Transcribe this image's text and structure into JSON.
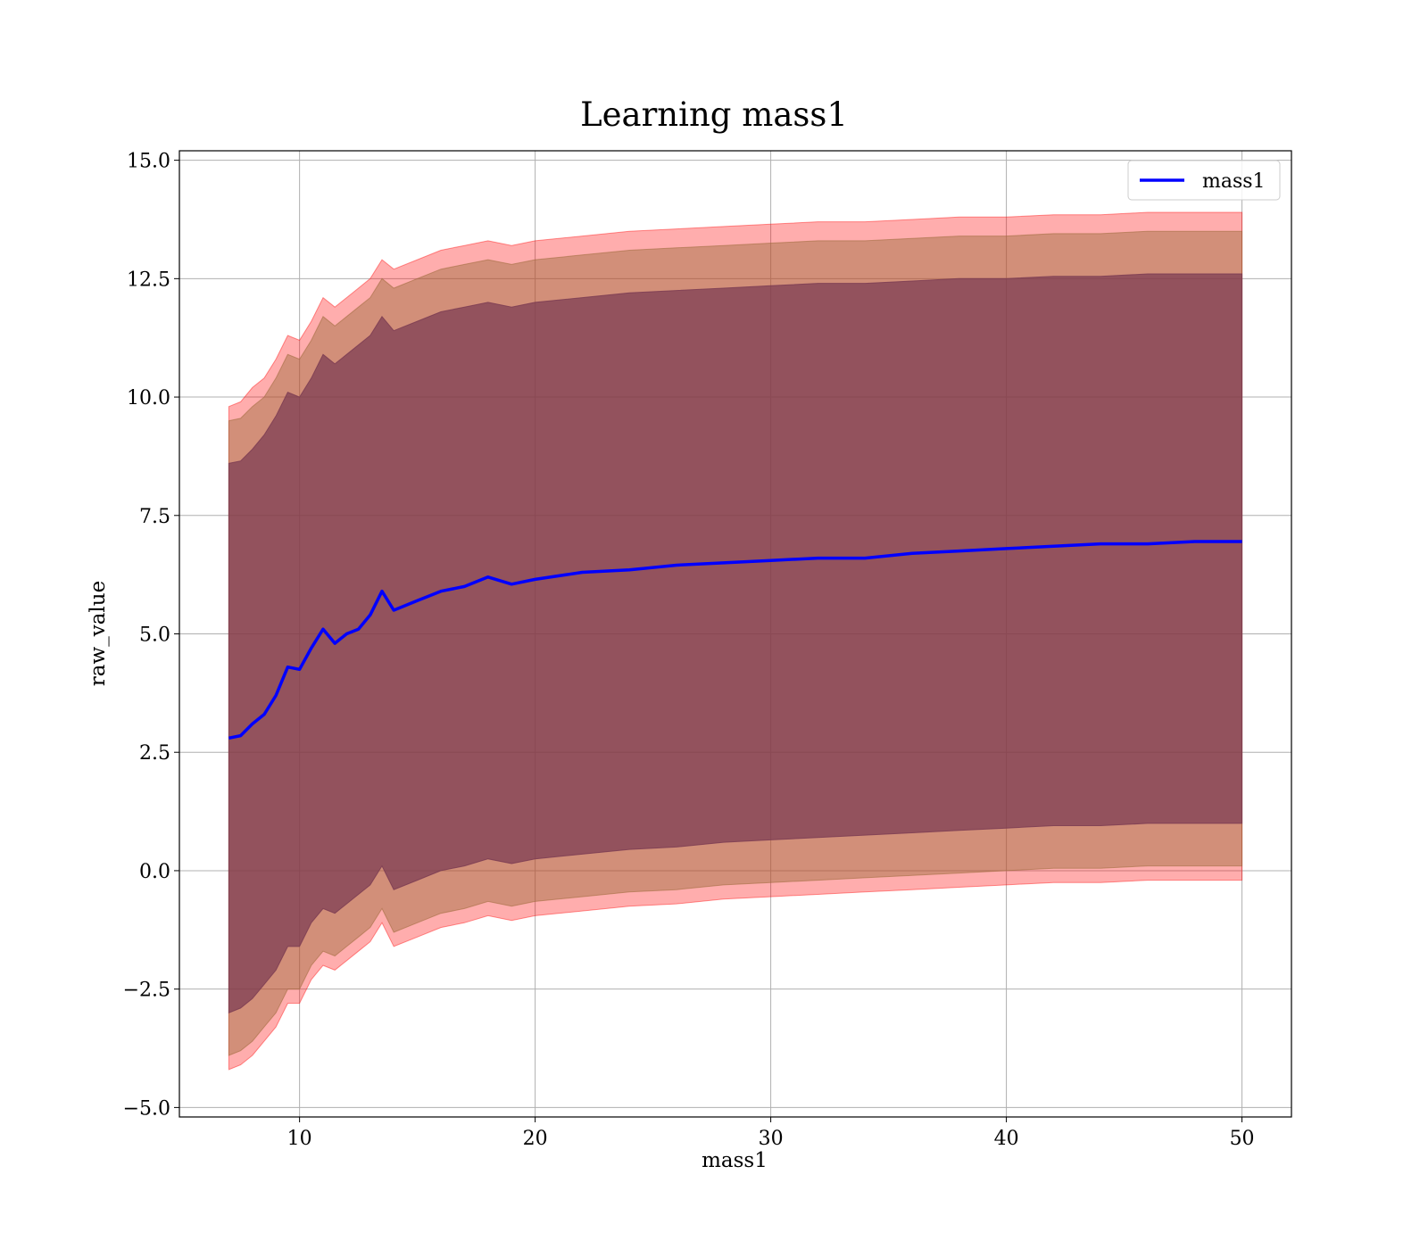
{
  "chart_data": {
    "type": "area",
    "title": "Learning mass1",
    "xlabel": "mass1",
    "ylabel": "raw_value",
    "xlim": [
      4.9,
      52.1
    ],
    "ylim": [
      -5.2,
      15.2
    ],
    "xticks": [
      10,
      20,
      30,
      40,
      50
    ],
    "xtick_labels": [
      "10",
      "20",
      "30",
      "40",
      "50"
    ],
    "yticks": [
      -5.0,
      -2.5,
      0.0,
      2.5,
      5.0,
      7.5,
      10.0,
      12.5,
      15.0
    ],
    "ytick_labels": [
      "−5.0",
      "−2.5",
      "0.0",
      "2.5",
      "5.0",
      "7.5",
      "10.0",
      "12.5",
      "15.0"
    ],
    "grid": true,
    "legend_placement": "top-right",
    "x": [
      7.0,
      7.5,
      8.0,
      8.5,
      9.0,
      9.5,
      10.0,
      10.5,
      11.0,
      11.5,
      12.0,
      12.5,
      13.0,
      13.5,
      14.0,
      15.0,
      16.0,
      17.0,
      18.0,
      19.0,
      20.0,
      22.0,
      24.0,
      26.0,
      28.0,
      30.0,
      32.0,
      34.0,
      36.0,
      38.0,
      40.0,
      42.0,
      44.0,
      46.0,
      48.0,
      50.0
    ],
    "series": [
      {
        "name": "mass1",
        "color": "#0000ff",
        "values": [
          2.8,
          2.85,
          3.1,
          3.3,
          3.7,
          4.3,
          4.25,
          4.7,
          5.1,
          4.8,
          5.0,
          5.1,
          5.4,
          5.9,
          5.5,
          5.7,
          5.9,
          6.0,
          6.2,
          6.05,
          6.15,
          6.3,
          6.35,
          6.45,
          6.5,
          6.55,
          6.6,
          6.6,
          6.7,
          6.75,
          6.8,
          6.85,
          6.9,
          6.9,
          6.95,
          6.95
        ]
      }
    ],
    "bands": [
      {
        "color": "#ff0000",
        "opacity": 0.32,
        "upper": [
          9.8,
          9.9,
          10.2,
          10.4,
          10.8,
          11.3,
          11.2,
          11.6,
          12.1,
          11.9,
          12.1,
          12.3,
          12.5,
          12.9,
          12.7,
          12.9,
          13.1,
          13.2,
          13.3,
          13.2,
          13.3,
          13.4,
          13.5,
          13.55,
          13.6,
          13.65,
          13.7,
          13.7,
          13.75,
          13.8,
          13.8,
          13.85,
          13.85,
          13.9,
          13.9,
          13.9
        ],
        "lower": [
          -4.2,
          -4.1,
          -3.9,
          -3.6,
          -3.3,
          -2.8,
          -2.8,
          -2.3,
          -2.0,
          -2.1,
          -1.9,
          -1.7,
          -1.5,
          -1.1,
          -1.6,
          -1.4,
          -1.2,
          -1.1,
          -0.95,
          -1.05,
          -0.95,
          -0.85,
          -0.75,
          -0.7,
          -0.6,
          -0.55,
          -0.5,
          -0.45,
          -0.4,
          -0.35,
          -0.3,
          -0.25,
          -0.25,
          -0.2,
          -0.2,
          -0.2
        ]
      },
      {
        "color": "#9c6a3a",
        "opacity": 0.45,
        "upper": [
          9.5,
          9.55,
          9.8,
          10.0,
          10.4,
          10.9,
          10.8,
          11.2,
          11.7,
          11.5,
          11.7,
          11.9,
          12.1,
          12.5,
          12.3,
          12.5,
          12.7,
          12.8,
          12.9,
          12.8,
          12.9,
          13.0,
          13.1,
          13.15,
          13.2,
          13.25,
          13.3,
          13.3,
          13.35,
          13.4,
          13.4,
          13.45,
          13.45,
          13.5,
          13.5,
          13.5
        ],
        "lower": [
          -3.9,
          -3.8,
          -3.6,
          -3.3,
          -3.0,
          -2.5,
          -2.5,
          -2.0,
          -1.7,
          -1.8,
          -1.6,
          -1.4,
          -1.2,
          -0.8,
          -1.3,
          -1.1,
          -0.9,
          -0.8,
          -0.65,
          -0.75,
          -0.65,
          -0.55,
          -0.45,
          -0.4,
          -0.3,
          -0.25,
          -0.2,
          -0.15,
          -0.1,
          -0.05,
          0.0,
          0.05,
          0.05,
          0.1,
          0.1,
          0.1
        ]
      },
      {
        "color": "#7a3a52",
        "opacity": 0.72,
        "upper": [
          8.6,
          8.65,
          8.9,
          9.2,
          9.6,
          10.1,
          10.0,
          10.4,
          10.9,
          10.7,
          10.9,
          11.1,
          11.3,
          11.7,
          11.4,
          11.6,
          11.8,
          11.9,
          12.0,
          11.9,
          12.0,
          12.1,
          12.2,
          12.25,
          12.3,
          12.35,
          12.4,
          12.4,
          12.45,
          12.5,
          12.5,
          12.55,
          12.55,
          12.6,
          12.6,
          12.6
        ],
        "lower": [
          -3.0,
          -2.9,
          -2.7,
          -2.4,
          -2.1,
          -1.6,
          -1.6,
          -1.1,
          -0.8,
          -0.9,
          -0.7,
          -0.5,
          -0.3,
          0.1,
          -0.4,
          -0.2,
          0.0,
          0.1,
          0.25,
          0.15,
          0.25,
          0.35,
          0.45,
          0.5,
          0.6,
          0.65,
          0.7,
          0.75,
          0.8,
          0.85,
          0.9,
          0.95,
          0.95,
          1.0,
          1.0,
          1.0
        ]
      }
    ]
  }
}
